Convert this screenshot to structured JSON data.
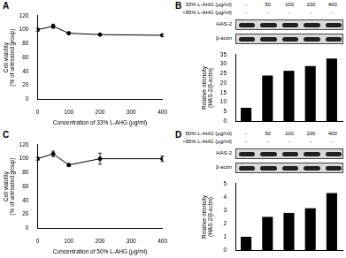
{
  "panels": [
    {
      "label": "A"
    },
    {
      "label": "B",
      "blot": {
        "rows": [
          {
            "label": "33% L-AHG (μg/ml)",
            "cells": [
              "-",
              "50",
              "100",
              "200",
              "400"
            ]
          },
          {
            "label": ">95% L-AHG (μg/ml)",
            "cells": [
              "-",
              "-",
              "-",
              "-",
              "-"
            ]
          }
        ],
        "bands": [
          "HAS-2",
          "β-actin"
        ]
      }
    },
    {
      "label": "C"
    },
    {
      "label": "D",
      "blot": {
        "rows": [
          {
            "label": "50% L-AHG (μg/ml)",
            "cells": [
              "-",
              "50",
              "100",
              "200",
              "400"
            ]
          },
          {
            "label": ">95% L-AHG (μg/ml)",
            "cells": [
              "-",
              "-",
              "-",
              "-",
              "-"
            ]
          }
        ],
        "bands": [
          "HAS-2",
          "β-actin"
        ]
      }
    }
  ],
  "chart_data": [
    {
      "type": "line",
      "x": [
        0,
        50,
        100,
        200,
        400
      ],
      "values": [
        100,
        105,
        95,
        93,
        92
      ],
      "errors": [
        2,
        3,
        1,
        1,
        2
      ],
      "xlabel": "Concentration of 33% L-AHG (μg/ml)",
      "ylabel": [
        "Cell viability",
        "(% of untreated group)"
      ],
      "xlim": [
        0,
        400
      ],
      "xticks": [
        0,
        100,
        200,
        300,
        400
      ],
      "ylim": [
        0,
        120
      ],
      "yticks": [
        0,
        20,
        40,
        60,
        80,
        100,
        120
      ],
      "color": "#000000",
      "marker": "circle",
      "grid": false
    },
    {
      "type": "bar",
      "categories": [
        null,
        null,
        null,
        null,
        null
      ],
      "values": [
        7,
        24,
        26.5,
        29,
        33
      ],
      "ylabel": [
        "Relative intensity",
        "(HAS-2/β-actin)"
      ],
      "ylim": [
        0,
        35
      ],
      "yticks": [
        0,
        5,
        10,
        15,
        20,
        25,
        30,
        35
      ],
      "color": "#000000",
      "grid": false,
      "tick_labels": "y"
    },
    {
      "type": "line",
      "x": [
        0,
        50,
        100,
        200,
        400
      ],
      "values": [
        100,
        107,
        91,
        100,
        100
      ],
      "errors": [
        2,
        4,
        2,
        8,
        4
      ],
      "xlabel": "Concentration of 50% L-AHG (μg/ml)",
      "ylabel": [
        "Cell viability",
        "(% of untreated group)"
      ],
      "xlim": [
        0,
        400
      ],
      "xticks": [
        0,
        100,
        200,
        300,
        400
      ],
      "ylim": [
        0,
        120
      ],
      "yticks": [
        0,
        20,
        40,
        60,
        80,
        100,
        120
      ],
      "color": "#000000",
      "marker": "circle",
      "grid": false
    },
    {
      "type": "bar",
      "categories": [
        null,
        null,
        null,
        null,
        null
      ],
      "values": [
        1,
        2.5,
        2.8,
        3.15,
        4.3
      ],
      "ylabel": [
        "Relative intensity",
        "(HAS-2/β-actin)"
      ],
      "ylim": [
        0,
        5
      ],
      "yticks": [
        0,
        1,
        2,
        3,
        4,
        5
      ],
      "color": "#000000",
      "grid": false,
      "tick_labels": "y"
    }
  ]
}
